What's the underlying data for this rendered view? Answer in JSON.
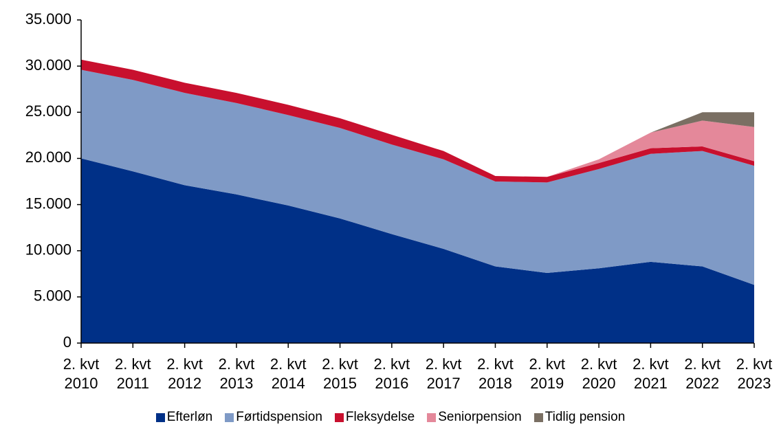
{
  "chart_data": {
    "type": "stacked-area",
    "categories": [
      "2. kvt 2010",
      "2. kvt 2011",
      "2. kvt 2012",
      "2. kvt 2013",
      "2. kvt 2014",
      "2. kvt 2015",
      "2. kvt 2016",
      "2. kvt 2017",
      "2. kvt 2018",
      "2. kvt 2019",
      "2. kvt 2020",
      "2. kvt 2021",
      "2. kvt 2022",
      "2. kvt 2023"
    ],
    "series": [
      {
        "name": "Efterløn",
        "color": "#003087",
        "values": [
          20000,
          18600,
          17100,
          16100,
          14900,
          13500,
          11800,
          10200,
          8300,
          7600,
          8100,
          8800,
          8300,
          6300
        ]
      },
      {
        "name": "Førtidspension",
        "color": "#7f9ac6",
        "values": [
          9600,
          9900,
          10000,
          9900,
          9800,
          9800,
          9700,
          9700,
          9200,
          9800,
          10750,
          11700,
          12500,
          12900
        ]
      },
      {
        "name": "Fleksydelse",
        "color": "#c8102e",
        "values": [
          1100,
          1100,
          1100,
          1100,
          1100,
          1050,
          1060,
          900,
          600,
          600,
          650,
          600,
          500,
          500
        ]
      },
      {
        "name": "Seniorpension",
        "color": "#e4889a",
        "values": [
          0,
          0,
          0,
          0,
          0,
          0,
          0,
          0,
          0,
          0,
          400,
          1700,
          2800,
          3700
        ]
      },
      {
        "name": "Tidlig pension",
        "color": "#7a6f63",
        "values": [
          0,
          0,
          0,
          0,
          0,
          0,
          0,
          0,
          0,
          0,
          0,
          0,
          900,
          1600
        ]
      }
    ],
    "ylim": [
      0,
      35000
    ],
    "yticks": [
      0,
      {
        "value": 5000,
        "label": "5.000"
      },
      {
        "value": 10000,
        "label": "10.000"
      },
      {
        "value": 15000,
        "label": "15.000"
      },
      {
        "value": 20000,
        "label": "20.000"
      },
      {
        "value": 25000,
        "label": "25.000"
      },
      {
        "value": 30000,
        "label": "30.000"
      },
      {
        "value": 35000,
        "label": "35.000"
      }
    ]
  }
}
